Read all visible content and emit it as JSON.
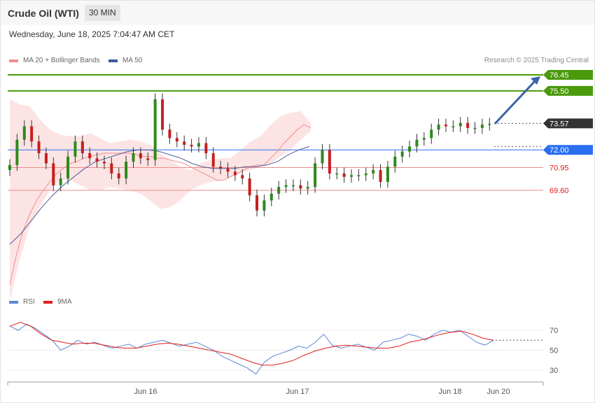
{
  "header": {
    "title": "Crude Oil (WTI)",
    "timeframe": "30 MIN",
    "date": "Wednesday, June 18, 2025 7:04:47 AM CET",
    "credit": "Research © 2025 Trading Central"
  },
  "legend": {
    "main": [
      {
        "label": "MA 20 + Bollinger Bands",
        "color": "#f28c8c"
      },
      {
        "label": "MA 50",
        "color": "#3c5a9a"
      }
    ],
    "rsi": [
      {
        "label": "RSI",
        "color": "#5b86d6"
      },
      {
        "label": "9MA",
        "color": "#e11d1d"
      }
    ]
  },
  "chart_data": [
    {
      "type": "candlestick",
      "x_labels": [
        "Jun 16",
        "Jun 17",
        "Jun 18",
        "Jun 20"
      ],
      "ylim": [
        62,
        78.5
      ],
      "levels": [
        {
          "value": 76.45,
          "label": "76.45",
          "color": "#4a9a0b",
          "style": "target"
        },
        {
          "value": 75.5,
          "label": "75.50",
          "color": "#4a9a0b",
          "style": "target"
        },
        {
          "value": 73.57,
          "label": "73.57",
          "color": "#333333",
          "style": "last"
        },
        {
          "value": 72.0,
          "label": "72.00",
          "color": "#2a6ef0",
          "style": "pivot"
        },
        {
          "value": 70.95,
          "label": "70.95",
          "color": "#e11d1d",
          "style": "support"
        },
        {
          "value": 69.6,
          "label": "69.60",
          "color": "#e11d1d",
          "style": "support"
        }
      ],
      "arrow": {
        "from": 73.55,
        "to": 76.45
      },
      "close": [
        71.1,
        72.6,
        73.4,
        72.5,
        71.8,
        71.2,
        69.9,
        70.3,
        71.6,
        72.5,
        71.8,
        71.5,
        71.3,
        71.2,
        70.6,
        70.3,
        71.3,
        71.8,
        71.5,
        71.4,
        75.0,
        73.2,
        72.7,
        72.5,
        72.3,
        72.2,
        72.4,
        71.8,
        71.0,
        70.9,
        70.7,
        70.5,
        70.3,
        69.3,
        68.4,
        69.0,
        69.4,
        69.8,
        69.9,
        69.9,
        69.7,
        69.8,
        71.2,
        72.0,
        70.6,
        70.6,
        70.4,
        70.5,
        70.5,
        70.6,
        70.8,
        70.1,
        71.0,
        71.6,
        71.9,
        72.2,
        72.6,
        72.7,
        73.2,
        73.5,
        73.4,
        73.4,
        73.6,
        73.3,
        73.3,
        73.5,
        73.55
      ],
      "ma20": [
        64,
        65.8,
        67.2,
        68.2,
        69.0,
        69.6,
        70.1,
        70.6,
        70.9,
        71.2,
        71.3,
        71.5,
        71.6,
        71.7,
        71.8,
        71.8,
        71.8,
        71.8,
        71.8,
        71.7,
        71.6,
        71.6,
        71.5,
        71.5,
        71.4,
        71.3,
        71.2,
        71.0,
        70.8,
        70.6,
        70.4,
        70.2,
        70.2,
        70.4,
        70.6,
        70.8,
        71.0,
        71.1,
        71.1,
        71.5,
        71.9,
        72.4,
        72.8,
        73.2,
        73.5,
        73.3
      ],
      "ma20_step": 1.5,
      "bb_upper": [
        75,
        74.7,
        74.6,
        73.8,
        73.2,
        72.9,
        72.8,
        72.8,
        73.0,
        72.7,
        72.4,
        72.5,
        72.6,
        72.5,
        72.3,
        71.8,
        71.4,
        71.0,
        70.8,
        71.2,
        71.4,
        71.5,
        71.5,
        72.0,
        72.5,
        72.8,
        73.5,
        74.0,
        74.2,
        74.3,
        73.6
      ],
      "bb_lower": [
        63.0,
        65.5,
        67.5,
        68.6,
        69.6,
        70.2,
        70.2,
        69.9,
        69.6,
        69.6,
        69.8,
        69.7,
        69.6,
        69.4,
        69.0,
        68.5,
        68.6,
        69.0,
        69.6,
        69.9,
        70.1,
        70.2,
        70.4,
        70.6,
        70.8,
        71.0,
        71.2,
        71.6,
        72.0,
        72.6,
        73.1
      ],
      "bb_step": 2.25,
      "ma50": [
        66.4,
        67.0,
        67.8,
        68.6,
        69.3,
        69.9,
        70.4,
        70.9,
        71.3,
        71.5,
        71.7,
        71.9,
        72.0,
        72.0,
        71.9,
        71.7,
        71.5,
        71.2,
        71.0,
        70.9,
        70.9,
        70.9,
        71.0,
        71.0,
        71.1,
        71.3,
        71.7,
        72.0,
        72.2
      ],
      "ma50_step": 2.4
    },
    {
      "type": "line",
      "ylim": [
        20,
        78
      ],
      "gridlines": [
        70,
        50,
        30
      ],
      "rsi": [
        74,
        70,
        76,
        72,
        66,
        60,
        50,
        54,
        60,
        56,
        58,
        55,
        52,
        54,
        56,
        52,
        56,
        58,
        60,
        57,
        54,
        56,
        58,
        54,
        50,
        44,
        40,
        36,
        32,
        26,
        38,
        44,
        47,
        50,
        54,
        52,
        58,
        66,
        55,
        52,
        54,
        56,
        53,
        50,
        58,
        60,
        62,
        66,
        64,
        60,
        66,
        70,
        68,
        70,
        64,
        58,
        55,
        60
      ],
      "rsi_ma": [
        74,
        78,
        74,
        66,
        60,
        58,
        56,
        57,
        57,
        55,
        53,
        52,
        52,
        54,
        56,
        57,
        56,
        54,
        52,
        50,
        48,
        46,
        42,
        38,
        35,
        35,
        37,
        40,
        45,
        49,
        52,
        54,
        55,
        54,
        53,
        52,
        52,
        54,
        58,
        60,
        63,
        66,
        68,
        69,
        66,
        62,
        60
      ]
    }
  ]
}
